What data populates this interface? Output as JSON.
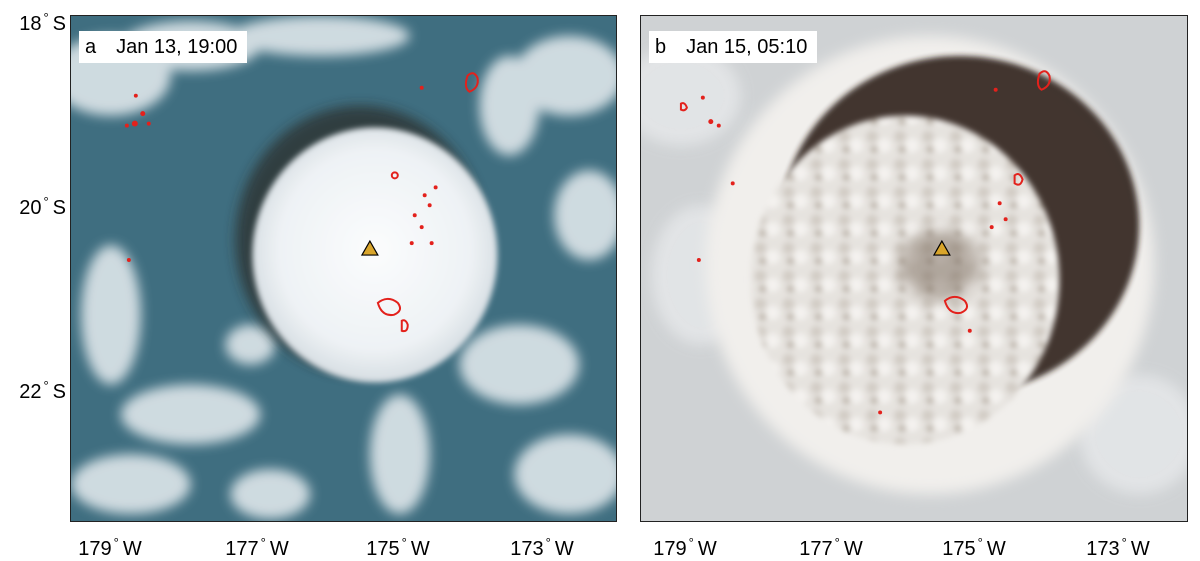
{
  "panels": [
    {
      "letter": "a",
      "time": "Jan 13, 19:00",
      "marker": "triangle-volcano-icon"
    },
    {
      "letter": "b",
      "time": "Jan 15, 05:10",
      "marker": "triangle-volcano-icon"
    }
  ],
  "axes": {
    "lat_labels": [
      {
        "value": "18",
        "hemi": "S"
      },
      {
        "value": "20",
        "hemi": "S"
      },
      {
        "value": "22",
        "hemi": "S"
      }
    ],
    "lon_labels": [
      {
        "value": "179",
        "hemi": "W"
      },
      {
        "value": "177",
        "hemi": "W"
      },
      {
        "value": "175",
        "hemi": "W"
      },
      {
        "value": "173",
        "hemi": "W"
      }
    ],
    "degree_symbol": "°"
  },
  "colors": {
    "ocean": "#3f6e80",
    "plume": "#f4f6f8",
    "land_contour": "#e3211c",
    "marker_fill": "#d9a52b",
    "shadow": "#3a2a1e"
  }
}
